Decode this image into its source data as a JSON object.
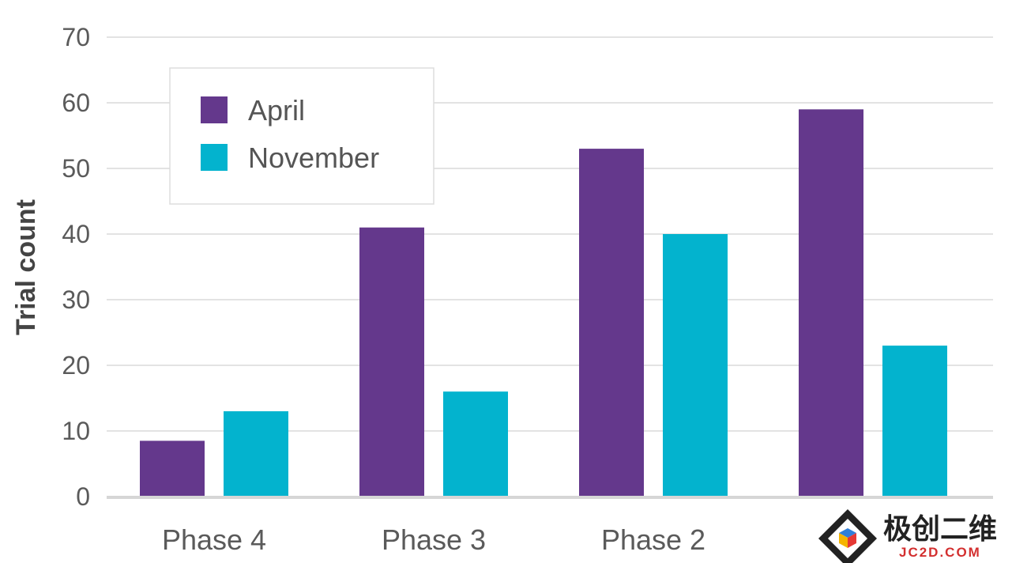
{
  "chart_data": {
    "type": "bar",
    "title": "",
    "xlabel": "",
    "ylabel": "Trial count",
    "ylim": [
      0,
      70
    ],
    "yticks": [
      0,
      10,
      20,
      30,
      40,
      50,
      60,
      70
    ],
    "grid": true,
    "legend_position": "top-left",
    "categories": [
      "Phase 4",
      "Phase 3",
      "Phase 2",
      ""
    ],
    "series": [
      {
        "name": "April",
        "color": "#64388c",
        "values": [
          8.5,
          41,
          53,
          59
        ]
      },
      {
        "name": "November",
        "color": "#03b3ce",
        "values": [
          13,
          16,
          40,
          23
        ]
      }
    ]
  },
  "watermark": {
    "chinese": "极创二维",
    "latin": "JC2D.COM",
    "icon": "cube-logo-icon"
  }
}
